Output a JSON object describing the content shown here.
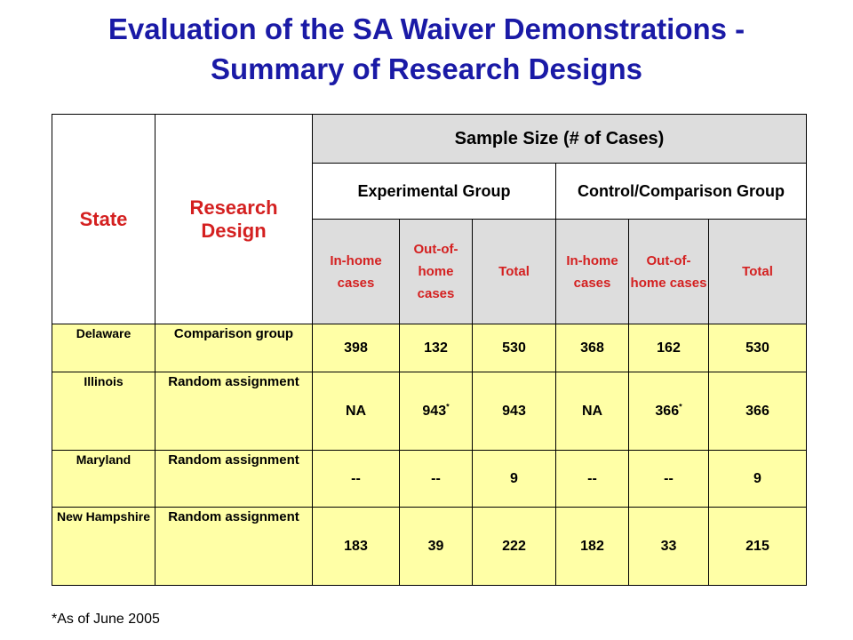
{
  "title": {
    "line1": "Evaluation of the SA Waiver Demonstrations -",
    "line2": "Summary of Research Designs"
  },
  "table": {
    "headers": {
      "state": "State",
      "research_design": "Research Design",
      "sample_size": "Sample Size (# of Cases)",
      "experimental_group": "Experimental Group",
      "control_group": "Control/Comparison Group",
      "exp_in_home": "In-home cases",
      "exp_out_of_home": "Out-of-home cases",
      "exp_total": "Total",
      "ctrl_in_home": "In-home cases",
      "ctrl_out_of_home": "Out-of-home cases",
      "ctrl_total": "Total"
    },
    "rows": [
      {
        "state": "Delaware",
        "design": "Comparison group",
        "exp_in": "398",
        "exp_out": "132",
        "exp_total": "530",
        "ctrl_in": "368",
        "ctrl_out": "162",
        "ctrl_total": "530"
      },
      {
        "state": "Illinois",
        "design": "Random assignment",
        "exp_in": "NA",
        "exp_out": "943",
        "exp_out_mark": "*",
        "exp_total": "943",
        "ctrl_in": "NA",
        "ctrl_out": "366",
        "ctrl_out_mark": "*",
        "ctrl_total": "366"
      },
      {
        "state": "Maryland",
        "design": "Random assignment",
        "exp_in": "--",
        "exp_out": "--",
        "exp_total": "9",
        "ctrl_in": "--",
        "ctrl_out": "--",
        "ctrl_total": "9"
      },
      {
        "state": "New Hampshire",
        "design": "Random assignment",
        "exp_in": "183",
        "exp_out": "39",
        "exp_total": "222",
        "ctrl_in": "182",
        "ctrl_out": "33",
        "ctrl_total": "215"
      }
    ]
  },
  "footnote": "*As of June 2005",
  "colors": {
    "title": "#1a1aa6",
    "header_red": "#d42020",
    "header_grey": "#dddddd",
    "row_yellow": "#ffffa6"
  }
}
